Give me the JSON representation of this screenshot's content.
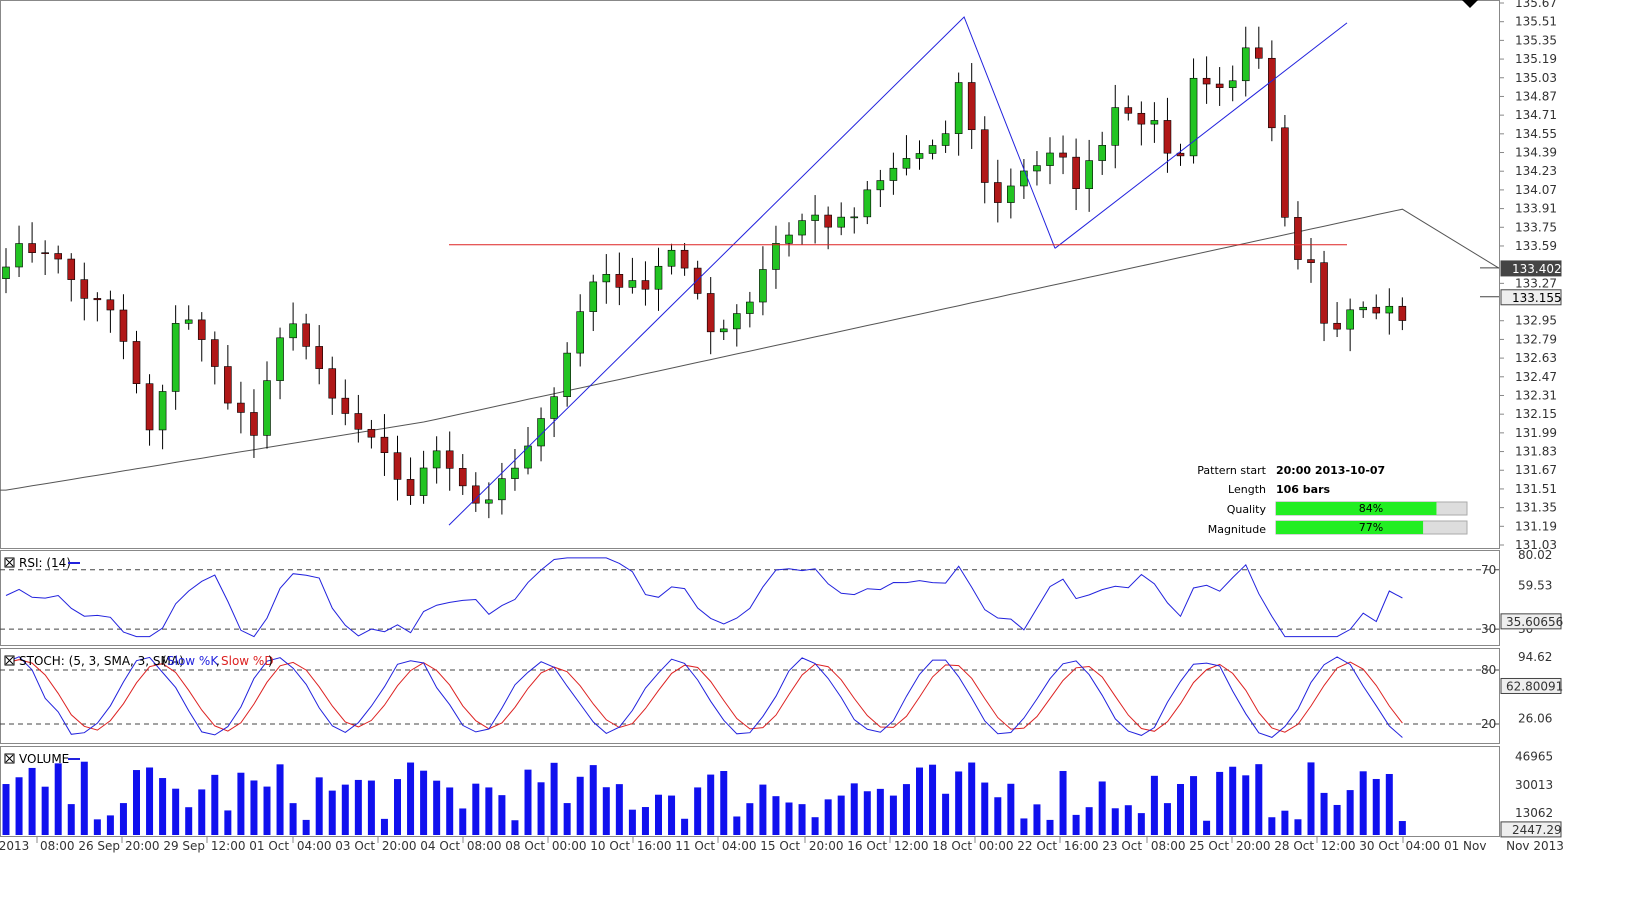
{
  "chart_data": {
    "type": "candlestick",
    "main_panel": {
      "price_axis_ticks": [
        "135.67",
        "135.51",
        "135.35",
        "135.19",
        "135.03",
        "134.87",
        "134.71",
        "134.55",
        "134.39",
        "134.23",
        "134.07",
        "133.91",
        "133.75",
        "133.59",
        "133.27",
        "132.95",
        "132.79",
        "132.63",
        "132.47",
        "132.31",
        "132.15",
        "131.99",
        "131.83",
        "131.67",
        "131.51",
        "131.35",
        "131.19",
        "131.03"
      ],
      "ylim": [
        131.03,
        135.67
      ],
      "current_labels": [
        {
          "value": 133.402,
          "text": "133.402",
          "style": "dark"
        },
        {
          "value": 133.155,
          "text": "133.155",
          "style": "light"
        }
      ],
      "pattern_lines": {
        "zigzag_1": [
          [
            0,
            131.2
          ],
          [
            51,
            135.55
          ],
          [
            60,
            133.57
          ]
        ],
        "zigzag_2": [
          [
            60,
            133.57
          ],
          [
            101,
            135.5
          ]
        ],
        "resistance": {
          "level": 133.6,
          "from": 34,
          "to": 101
        }
      },
      "pattern_info": {
        "rows": [
          {
            "label": "Pattern start",
            "value": "20:00 2013-10-07"
          },
          {
            "label": "Length",
            "value": "106 bars"
          },
          {
            "label": "Quality",
            "value": "84%",
            "fill": 0.84
          },
          {
            "label": "Magnitude",
            "value": "77%",
            "fill": 0.77
          }
        ]
      },
      "colors": {
        "up": "#22c422",
        "down": "#b01818",
        "zigzag": "#2222dd",
        "resistance": "#dd2222",
        "ma": "#555555"
      }
    },
    "x_axis_labels": [
      "2013",
      "08:00 26 Sep",
      "20:00 29 Sep",
      "12:00 01 Oct",
      "04:00 03 Oct",
      "20:00 04 Oct",
      "08:00 08 Oct",
      "00:00 10 Oct",
      "16:00 11 Oct",
      "04:00 15 Oct",
      "20:00 16 Oct",
      "12:00 18 Oct",
      "00:00 22 Oct",
      "16:00 23 Oct",
      "08:00 25 Oct",
      "20:00 28 Oct",
      "12:00 30 Oct",
      "04:00 01 Nov",
      "Nov 2013"
    ],
    "rsi": {
      "title": "RSI: (14)",
      "ticks": [
        "80.02",
        "59.53",
        "30"
      ],
      "levels": [
        70,
        30
      ],
      "level_labels": [
        "70",
        "30"
      ],
      "current": "35.60656",
      "ylim": [
        20,
        82
      ]
    },
    "stoch": {
      "title": "STOCH: (5, 3, SMA, 3, SMA)",
      "legend_k": "Slow %K",
      "legend_d": "Slow %D",
      "ticks": [
        "94.62",
        "26.06"
      ],
      "levels": [
        80,
        20
      ],
      "level_labels": [
        "80",
        "20"
      ],
      "current": "62.80091",
      "ylim": [
        0,
        100
      ]
    },
    "volume": {
      "title": "VOLUME",
      "ticks": [
        "46965",
        "30013",
        "13062"
      ],
      "current": "2447.29",
      "ymax": 52000
    },
    "series_colors": {
      "rsi": "#2222dd",
      "stoch_k": "#2222dd",
      "stoch_d": "#dd2222",
      "volume": "#1010ee"
    }
  }
}
